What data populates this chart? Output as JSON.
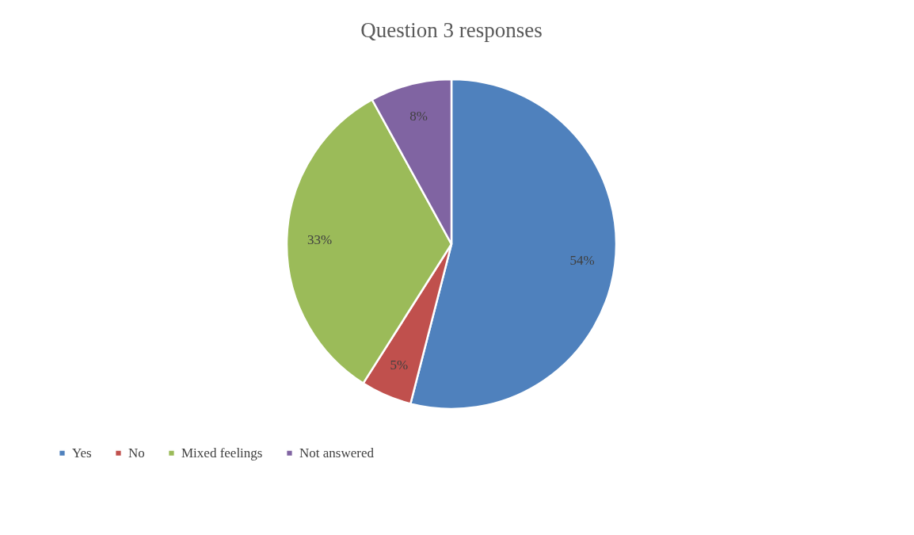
{
  "chart_data": {
    "type": "pie",
    "title": "Question 3 responses",
    "categories": [
      "Yes",
      "No",
      "Mixed feelings",
      "Not answered"
    ],
    "values": [
      54,
      5,
      33,
      8
    ],
    "colors": [
      "#4f81bd",
      "#c0504d",
      "#9bbb59",
      "#8064a2"
    ],
    "value_labels": [
      "54%",
      "5%",
      "33%",
      "8%"
    ],
    "legend": "bottom"
  }
}
